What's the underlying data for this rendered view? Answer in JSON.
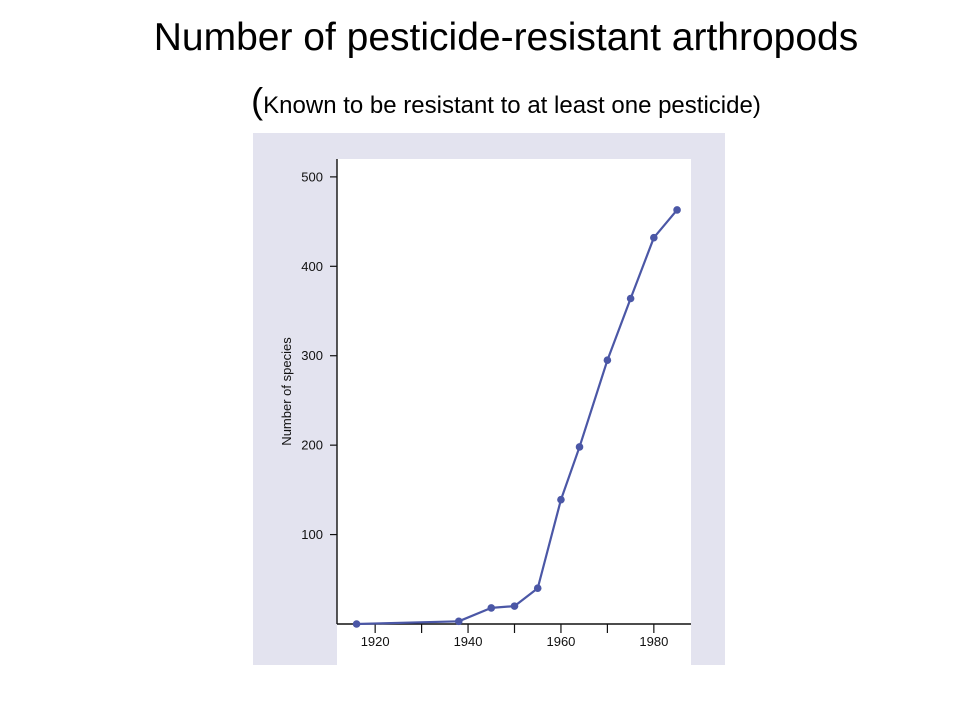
{
  "title": "Number of pesticide-resistant arthropods",
  "subtitle": {
    "open_paren": "(",
    "text": "Known to be resistant to at least one pesticide",
    "close_paren": ")"
  },
  "colors": {
    "panel_background": "#e3e3ef",
    "plot_background": "#ffffff",
    "series_line": "#4b57a6"
  },
  "chart_data": {
    "type": "line",
    "title": "",
    "xlabel": "",
    "ylabel": "Number of species",
    "xlim": [
      1912,
      1988
    ],
    "ylim": [
      0,
      520
    ],
    "x_ticks": [
      1920,
      1940,
      1960,
      1980
    ],
    "y_ticks": [
      100,
      200,
      300,
      400,
      500
    ],
    "grid": false,
    "series": [
      {
        "x": [
          1916,
          1938,
          1945,
          1950,
          1955,
          1960,
          1964,
          1970,
          1975,
          1980,
          1985
        ],
        "y": [
          0,
          3,
          18,
          20,
          40,
          139,
          198,
          295,
          364,
          432,
          463
        ]
      }
    ]
  }
}
